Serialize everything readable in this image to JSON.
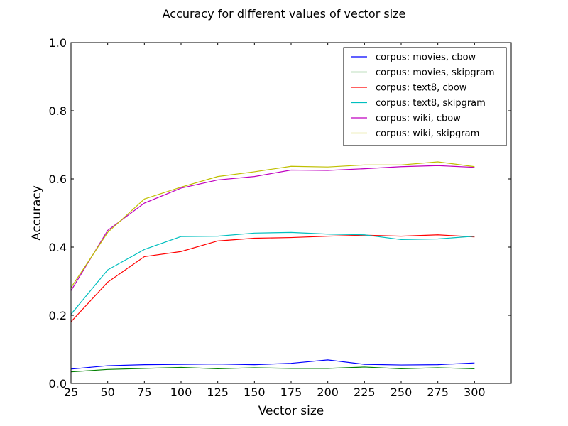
{
  "chart_data": {
    "type": "line",
    "title": "Accuracy for different values of vector size",
    "xlabel": "Vector size",
    "ylabel": "Accuracy",
    "xlim": [
      25,
      325
    ],
    "ylim": [
      0.0,
      1.0
    ],
    "x": [
      25,
      50,
      75,
      100,
      125,
      150,
      175,
      200,
      225,
      250,
      275,
      300
    ],
    "xticks": [
      "25",
      "50",
      "75",
      "100",
      "125",
      "150",
      "175",
      "200",
      "225",
      "250",
      "275",
      "300"
    ],
    "yticks": [
      "0.0",
      "0.2",
      "0.4",
      "0.6",
      "0.8",
      "1.0"
    ],
    "grid": false,
    "legend_position": "top-right",
    "series": [
      {
        "name": "corpus: movies, cbow",
        "color": "#0000ff",
        "values": [
          0.042,
          0.052,
          0.055,
          0.056,
          0.057,
          0.055,
          0.059,
          0.069,
          0.056,
          0.054,
          0.055,
          0.06
        ]
      },
      {
        "name": "corpus: movies, skipgram",
        "color": "#008000",
        "values": [
          0.034,
          0.041,
          0.044,
          0.047,
          0.043,
          0.046,
          0.044,
          0.044,
          0.048,
          0.043,
          0.046,
          0.043
        ]
      },
      {
        "name": "corpus: text8, cbow",
        "color": "#ff0000",
        "values": [
          0.181,
          0.297,
          0.372,
          0.387,
          0.418,
          0.426,
          0.428,
          0.432,
          0.435,
          0.432,
          0.436,
          0.43
        ]
      },
      {
        "name": "corpus: text8, skipgram",
        "color": "#00bfbf",
        "values": [
          0.203,
          0.333,
          0.393,
          0.431,
          0.432,
          0.441,
          0.443,
          0.438,
          0.436,
          0.422,
          0.424,
          0.432
        ]
      },
      {
        "name": "corpus: wiki, cbow",
        "color": "#bf00bf",
        "values": [
          0.272,
          0.449,
          0.529,
          0.573,
          0.597,
          0.607,
          0.626,
          0.625,
          0.63,
          0.636,
          0.639,
          0.634
        ]
      },
      {
        "name": "corpus: wiki, skipgram",
        "color": "#bfbf00",
        "values": [
          0.281,
          0.443,
          0.541,
          0.576,
          0.607,
          0.621,
          0.637,
          0.635,
          0.641,
          0.641,
          0.65,
          0.636
        ]
      }
    ]
  }
}
